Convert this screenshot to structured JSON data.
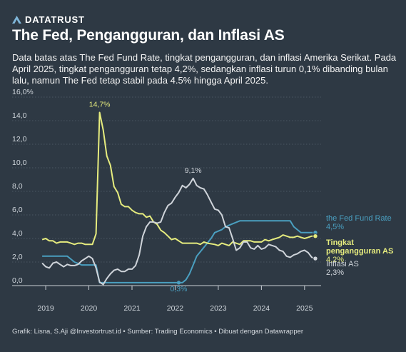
{
  "brand": {
    "name": "DATATRUST"
  },
  "header": {
    "title": "The Fed, Pengangguran, dan Inflasi AS",
    "subtitle": "Data batas atas The Fed Fund Rate, tingkat pengangguran, dan inflasi Amerika Serikat. Pada April 2025, tingkat pengangguran tetap 4,2%, sedangkan inflasi turun 0,1% dibanding bulan lalu, namun The Fed tetap stabil pada 4.5% hingga April 2025."
  },
  "footer": {
    "credit": "Grafik: Lisna, S.Aji @Investortrust.id • Sumber: Trading Economics • Dibuat dengan Datawrapper"
  },
  "colors": {
    "background": "#2e3944",
    "fed": "#4a9fc0",
    "unemployment": "#e6ec7e",
    "inflation": "#cfd4da",
    "grid": "#56616c"
  },
  "chart_data": {
    "type": "line",
    "x_unit": "year",
    "xlim": [
      2018.85,
      2025.35
    ],
    "ylim": [
      0,
      16
    ],
    "y_ticks": [
      0,
      2,
      4,
      6,
      8,
      10,
      12,
      14,
      16
    ],
    "y_tick_labels": [
      "0,0",
      "2,0",
      "4,0",
      "6,0",
      "8,0",
      "10,0",
      "12,0",
      "14,0",
      "16,0%"
    ],
    "x_ticks": [
      2019,
      2020,
      2021,
      2022,
      2023,
      2024,
      2025
    ],
    "x_tick_labels": [
      "2019",
      "2020",
      "2021",
      "2022",
      "2023",
      "2024",
      "2025"
    ],
    "grid": "horizontal",
    "series": [
      {
        "name": "the Fed Fund Rate",
        "color": "#4a9fc0",
        "end_label": "4,5%",
        "points": [
          [
            2018.917,
            2.5
          ],
          [
            2019.5,
            2.5
          ],
          [
            2019.583,
            2.25
          ],
          [
            2019.667,
            2.0
          ],
          [
            2019.833,
            1.75
          ],
          [
            2020.167,
            1.75
          ],
          [
            2020.25,
            0.25
          ],
          [
            2022.167,
            0.25
          ],
          [
            2022.25,
            0.5
          ],
          [
            2022.333,
            1.0
          ],
          [
            2022.417,
            1.75
          ],
          [
            2022.5,
            2.5
          ],
          [
            2022.667,
            3.25
          ],
          [
            2022.833,
            4.0
          ],
          [
            2022.917,
            4.5
          ],
          [
            2023.083,
            4.75
          ],
          [
            2023.167,
            5.0
          ],
          [
            2023.333,
            5.25
          ],
          [
            2023.5,
            5.5
          ],
          [
            2024.667,
            5.5
          ],
          [
            2024.75,
            5.0
          ],
          [
            2024.833,
            4.75
          ],
          [
            2024.917,
            4.5
          ],
          [
            2025.25,
            4.5
          ]
        ]
      },
      {
        "name": "Tingkat pengangguran AS",
        "color": "#e6ec7e",
        "end_label": "4,2%",
        "points": [
          [
            2018.917,
            3.9
          ],
          [
            2019.0,
            4.0
          ],
          [
            2019.083,
            3.8
          ],
          [
            2019.167,
            3.8
          ],
          [
            2019.25,
            3.6
          ],
          [
            2019.333,
            3.7
          ],
          [
            2019.5,
            3.7
          ],
          [
            2019.583,
            3.6
          ],
          [
            2019.667,
            3.5
          ],
          [
            2019.75,
            3.6
          ],
          [
            2019.833,
            3.6
          ],
          [
            2019.917,
            3.5
          ],
          [
            2020.0,
            3.5
          ],
          [
            2020.083,
            3.5
          ],
          [
            2020.167,
            4.4
          ],
          [
            2020.25,
            14.7
          ],
          [
            2020.333,
            13.2
          ],
          [
            2020.417,
            11.0
          ],
          [
            2020.5,
            10.2
          ],
          [
            2020.583,
            8.4
          ],
          [
            2020.667,
            7.9
          ],
          [
            2020.75,
            6.9
          ],
          [
            2020.833,
            6.7
          ],
          [
            2020.917,
            6.7
          ],
          [
            2021.0,
            6.4
          ],
          [
            2021.083,
            6.2
          ],
          [
            2021.167,
            6.1
          ],
          [
            2021.25,
            6.1
          ],
          [
            2021.333,
            5.8
          ],
          [
            2021.417,
            5.9
          ],
          [
            2021.5,
            5.4
          ],
          [
            2021.583,
            5.2
          ],
          [
            2021.667,
            4.7
          ],
          [
            2021.75,
            4.5
          ],
          [
            2021.833,
            4.2
          ],
          [
            2021.917,
            3.9
          ],
          [
            2022.0,
            4.0
          ],
          [
            2022.083,
            3.8
          ],
          [
            2022.167,
            3.6
          ],
          [
            2022.5,
            3.6
          ],
          [
            2022.583,
            3.5
          ],
          [
            2022.667,
            3.7
          ],
          [
            2022.75,
            3.6
          ],
          [
            2022.917,
            3.5
          ],
          [
            2023.0,
            3.4
          ],
          [
            2023.083,
            3.6
          ],
          [
            2023.167,
            3.5
          ],
          [
            2023.25,
            3.4
          ],
          [
            2023.333,
            3.7
          ],
          [
            2023.5,
            3.5
          ],
          [
            2023.583,
            3.8
          ],
          [
            2023.75,
            3.8
          ],
          [
            2023.833,
            3.7
          ],
          [
            2024.0,
            3.7
          ],
          [
            2024.083,
            3.9
          ],
          [
            2024.167,
            3.8
          ],
          [
            2024.25,
            3.9
          ],
          [
            2024.333,
            4.0
          ],
          [
            2024.417,
            4.1
          ],
          [
            2024.5,
            4.3
          ],
          [
            2024.583,
            4.2
          ],
          [
            2024.667,
            4.1
          ],
          [
            2024.75,
            4.1
          ],
          [
            2024.833,
            4.2
          ],
          [
            2024.917,
            4.1
          ],
          [
            2025.0,
            4.0
          ],
          [
            2025.083,
            4.1
          ],
          [
            2025.167,
            4.2
          ],
          [
            2025.25,
            4.2
          ]
        ]
      },
      {
        "name": "Inflasi AS",
        "color": "#cfd4da",
        "end_label": "2,3%",
        "points": [
          [
            2018.917,
            1.9
          ],
          [
            2019.0,
            1.6
          ],
          [
            2019.083,
            1.5
          ],
          [
            2019.167,
            1.9
          ],
          [
            2019.25,
            2.0
          ],
          [
            2019.333,
            1.8
          ],
          [
            2019.417,
            1.6
          ],
          [
            2019.5,
            1.8
          ],
          [
            2019.583,
            1.7
          ],
          [
            2019.667,
            1.7
          ],
          [
            2019.75,
            1.8
          ],
          [
            2019.833,
            2.1
          ],
          [
            2019.917,
            2.3
          ],
          [
            2020.0,
            2.5
          ],
          [
            2020.083,
            2.3
          ],
          [
            2020.167,
            1.5
          ],
          [
            2020.25,
            0.3
          ],
          [
            2020.333,
            0.1
          ],
          [
            2020.417,
            0.6
          ],
          [
            2020.5,
            1.0
          ],
          [
            2020.583,
            1.3
          ],
          [
            2020.667,
            1.4
          ],
          [
            2020.75,
            1.2
          ],
          [
            2020.833,
            1.2
          ],
          [
            2020.917,
            1.4
          ],
          [
            2021.0,
            1.4
          ],
          [
            2021.083,
            1.7
          ],
          [
            2021.167,
            2.6
          ],
          [
            2021.25,
            4.2
          ],
          [
            2021.333,
            5.0
          ],
          [
            2021.417,
            5.4
          ],
          [
            2021.5,
            5.4
          ],
          [
            2021.583,
            5.3
          ],
          [
            2021.667,
            5.4
          ],
          [
            2021.75,
            6.2
          ],
          [
            2021.833,
            6.8
          ],
          [
            2021.917,
            7.0
          ],
          [
            2022.0,
            7.5
          ],
          [
            2022.083,
            7.9
          ],
          [
            2022.167,
            8.5
          ],
          [
            2022.25,
            8.3
          ],
          [
            2022.333,
            8.6
          ],
          [
            2022.417,
            9.1
          ],
          [
            2022.5,
            8.5
          ],
          [
            2022.583,
            8.3
          ],
          [
            2022.667,
            8.2
          ],
          [
            2022.75,
            7.7
          ],
          [
            2022.833,
            7.1
          ],
          [
            2022.917,
            6.5
          ],
          [
            2023.0,
            6.4
          ],
          [
            2023.083,
            6.0
          ],
          [
            2023.167,
            5.0
          ],
          [
            2023.25,
            4.9
          ],
          [
            2023.333,
            4.0
          ],
          [
            2023.417,
            3.0
          ],
          [
            2023.5,
            3.2
          ],
          [
            2023.583,
            3.7
          ],
          [
            2023.667,
            3.7
          ],
          [
            2023.75,
            3.2
          ],
          [
            2023.833,
            3.1
          ],
          [
            2023.917,
            3.4
          ],
          [
            2024.0,
            3.1
          ],
          [
            2024.083,
            3.2
          ],
          [
            2024.167,
            3.5
          ],
          [
            2024.25,
            3.4
          ],
          [
            2024.333,
            3.3
          ],
          [
            2024.417,
            3.0
          ],
          [
            2024.5,
            2.9
          ],
          [
            2024.583,
            2.5
          ],
          [
            2024.667,
            2.4
          ],
          [
            2024.75,
            2.6
          ],
          [
            2024.833,
            2.7
          ],
          [
            2024.917,
            2.9
          ],
          [
            2025.0,
            3.0
          ],
          [
            2025.083,
            2.8
          ],
          [
            2025.167,
            2.4
          ],
          [
            2025.25,
            2.3
          ]
        ]
      }
    ],
    "annotations": [
      {
        "text": "14,7%",
        "series": "Tingkat pengangguran AS",
        "x": 2020.25,
        "y": 14.7
      },
      {
        "text": "9,1%",
        "series": "Inflasi AS",
        "x": 2022.417,
        "y": 9.1
      },
      {
        "text": "0,3%",
        "series": "the Fed Fund Rate",
        "x": 2022.083,
        "y": 0.25
      }
    ]
  }
}
